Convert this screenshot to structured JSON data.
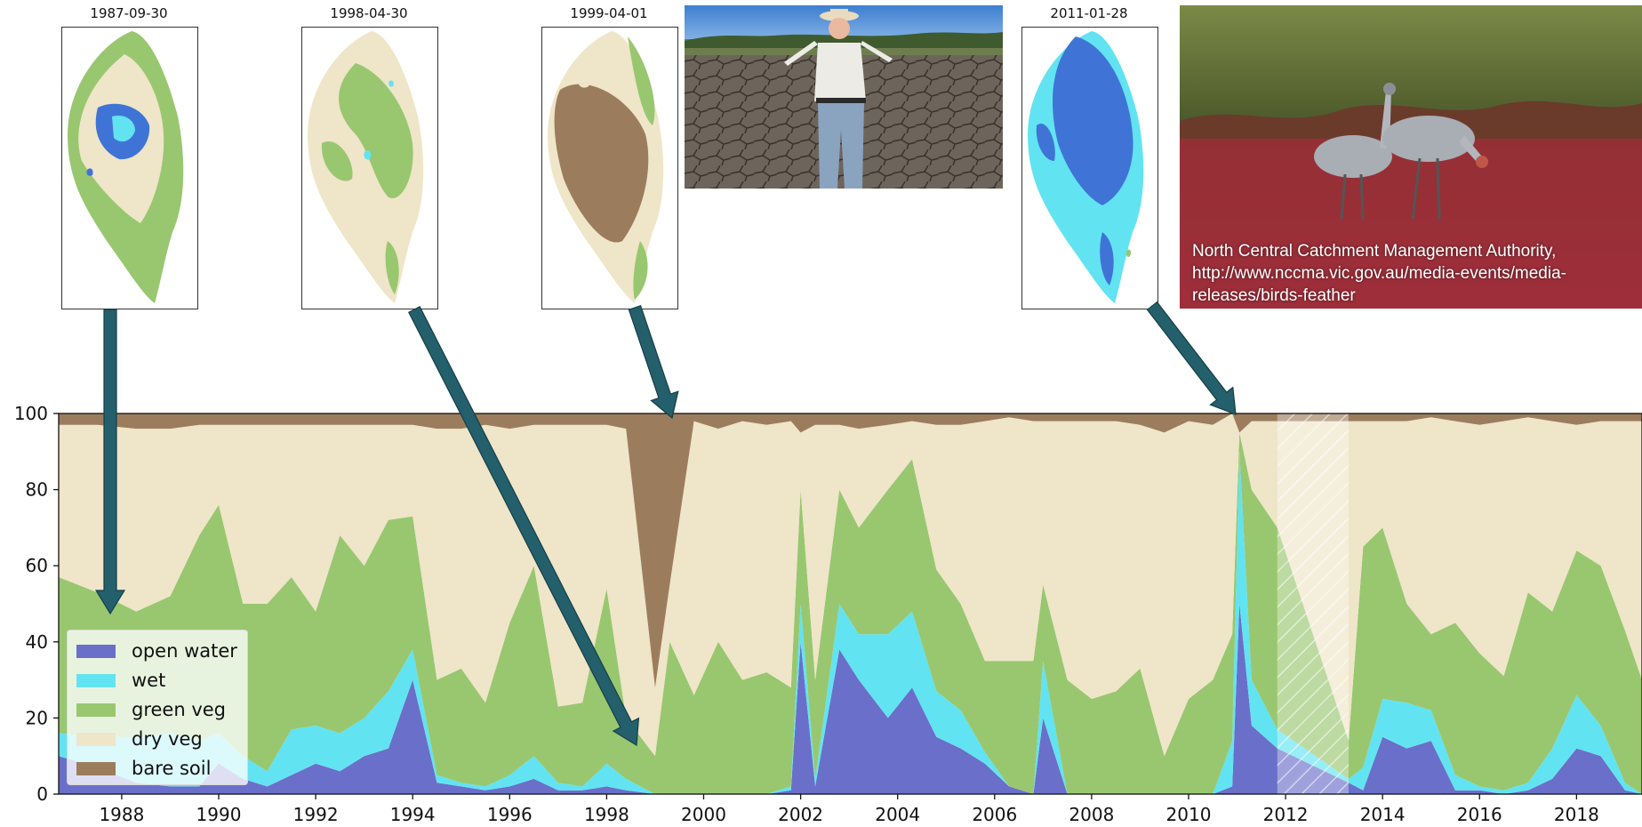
{
  "thumbnails": [
    {
      "date": "1987-09-30",
      "pattern": "mixed-water"
    },
    {
      "date": "1998-04-30",
      "pattern": "dry"
    },
    {
      "date": "1999-04-01",
      "pattern": "bare"
    },
    {
      "date": "2011-01-28",
      "pattern": "flooded"
    }
  ],
  "photos": {
    "farmer": {
      "caption": ""
    },
    "cranes": {
      "caption": "North Central Catchment Management Authority, http://www.nccma.vic.gov.au/media-events/media-releases/birds-feather"
    }
  },
  "colors": {
    "open_water": "#6a6fc9",
    "wet": "#62e3f2",
    "green_veg": "#98c76f",
    "dry_veg": "#efe5c8",
    "bare_soil": "#9b7d5d",
    "arrow": "#245f6c"
  },
  "chart_data": {
    "type": "area",
    "stacked": true,
    "title": "",
    "xlabel": "",
    "ylabel": "",
    "xlim": [
      1986.7,
      2019.35
    ],
    "ylim": [
      0,
      100
    ],
    "x_ticks": [
      "1988",
      "1990",
      "1992",
      "1994",
      "1996",
      "1998",
      "2000",
      "2002",
      "2004",
      "2006",
      "2008",
      "2010",
      "2012",
      "2014",
      "2016",
      "2018"
    ],
    "y_ticks": [
      "0",
      "20",
      "40",
      "60",
      "80",
      "100"
    ],
    "legend_position": "lower-left",
    "gap_period": [
      2011.83,
      2013.3
    ],
    "x": [
      1986.7,
      1987.5,
      1988.3,
      1989.0,
      1989.6,
      1990.0,
      1990.5,
      1991.0,
      1991.5,
      1992.0,
      1992.5,
      1993.0,
      1993.5,
      1994.0,
      1994.5,
      1995.0,
      1995.5,
      1996.0,
      1996.5,
      1997.0,
      1997.5,
      1998.0,
      1998.4,
      1999.0,
      1999.3,
      1999.8,
      2000.3,
      2000.8,
      2001.3,
      2001.8,
      2002.0,
      2002.3,
      2002.8,
      2003.2,
      2003.8,
      2004.3,
      2004.8,
      2005.3,
      2005.8,
      2006.3,
      2006.8,
      2007.0,
      2007.5,
      2008.0,
      2008.5,
      2009.0,
      2009.5,
      2010.0,
      2010.5,
      2010.9,
      2011.05,
      2011.3,
      2011.83,
      2013.3,
      2013.6,
      2014.0,
      2014.5,
      2015.0,
      2015.5,
      2016.0,
      2016.5,
      2017.0,
      2017.5,
      2018.0,
      2018.5,
      2019.0,
      2019.35
    ],
    "series": [
      {
        "name": "open water",
        "values": [
          10,
          7,
          3,
          2,
          2,
          8,
          4,
          2,
          5,
          8,
          6,
          10,
          12,
          30,
          3,
          2,
          1,
          2,
          4,
          1,
          1,
          2,
          1,
          0,
          0,
          0,
          0,
          0,
          0,
          1,
          40,
          2,
          38,
          30,
          20,
          28,
          15,
          12,
          8,
          2,
          0,
          20,
          0,
          0,
          0,
          0,
          0,
          0,
          0,
          2,
          50,
          18,
          12,
          3,
          1,
          15,
          12,
          14,
          1,
          1,
          0,
          1,
          4,
          12,
          10,
          1,
          0
        ]
      },
      {
        "name": "wet",
        "values": [
          6,
          8,
          12,
          14,
          12,
          8,
          6,
          4,
          12,
          10,
          10,
          10,
          15,
          8,
          2,
          1,
          1,
          3,
          6,
          2,
          1,
          6,
          3,
          0,
          0,
          0,
          0,
          0,
          0,
          1,
          10,
          2,
          12,
          12,
          22,
          20,
          12,
          10,
          3,
          0,
          0,
          15,
          0,
          0,
          0,
          0,
          0,
          0,
          0,
          12,
          40,
          12,
          5,
          1,
          6,
          10,
          12,
          8,
          4,
          1,
          1,
          2,
          8,
          14,
          8,
          2,
          0
        ]
      },
      {
        "name": "green veg",
        "values": [
          41,
          38,
          33,
          36,
          54,
          60,
          40,
          44,
          40,
          30,
          52,
          40,
          45,
          35,
          25,
          30,
          22,
          40,
          50,
          20,
          22,
          46,
          16,
          10,
          40,
          26,
          40,
          30,
          32,
          26,
          30,
          26,
          30,
          28,
          38,
          40,
          32,
          28,
          24,
          33,
          35,
          20,
          30,
          25,
          27,
          33,
          10,
          25,
          30,
          28,
          5,
          50,
          53,
          10,
          58,
          45,
          26,
          20,
          40,
          35,
          30,
          50,
          36,
          38,
          42,
          40,
          30
        ]
      },
      {
        "name": "dry veg",
        "values": [
          40,
          44,
          48,
          44,
          29,
          21,
          47,
          47,
          40,
          49,
          29,
          37,
          25,
          24,
          66,
          63,
          73,
          51,
          37,
          74,
          73,
          43,
          76,
          18,
          15,
          72,
          56,
          68,
          65,
          70,
          15,
          67,
          17,
          26,
          17,
          10,
          38,
          47,
          63,
          64,
          63,
          43,
          68,
          73,
          71,
          64,
          85,
          73,
          67,
          58,
          0,
          18,
          28,
          84,
          33,
          28,
          48,
          57,
          53,
          60,
          67,
          46,
          50,
          33,
          38,
          55,
          68
        ]
      },
      {
        "name": "bare soil",
        "values": [
          3,
          3,
          4,
          4,
          3,
          3,
          3,
          3,
          3,
          3,
          3,
          3,
          3,
          3,
          4,
          4,
          3,
          4,
          3,
          3,
          3,
          3,
          4,
          72,
          45,
          2,
          4,
          2,
          3,
          2,
          5,
          3,
          3,
          4,
          3,
          2,
          3,
          3,
          2,
          1,
          2,
          2,
          2,
          2,
          2,
          3,
          5,
          2,
          3,
          0,
          5,
          2,
          2,
          2,
          2,
          2,
          2,
          1,
          2,
          3,
          2,
          1,
          2,
          3,
          2,
          2,
          2
        ]
      }
    ]
  },
  "legend": [
    {
      "label": "open water",
      "color": "#6a6fc9"
    },
    {
      "label": "wet",
      "color": "#62e3f2"
    },
    {
      "label": "green veg",
      "color": "#98c76f"
    },
    {
      "label": "dry veg",
      "color": "#efe5c8"
    },
    {
      "label": "bare soil",
      "color": "#9b7d5d"
    }
  ]
}
